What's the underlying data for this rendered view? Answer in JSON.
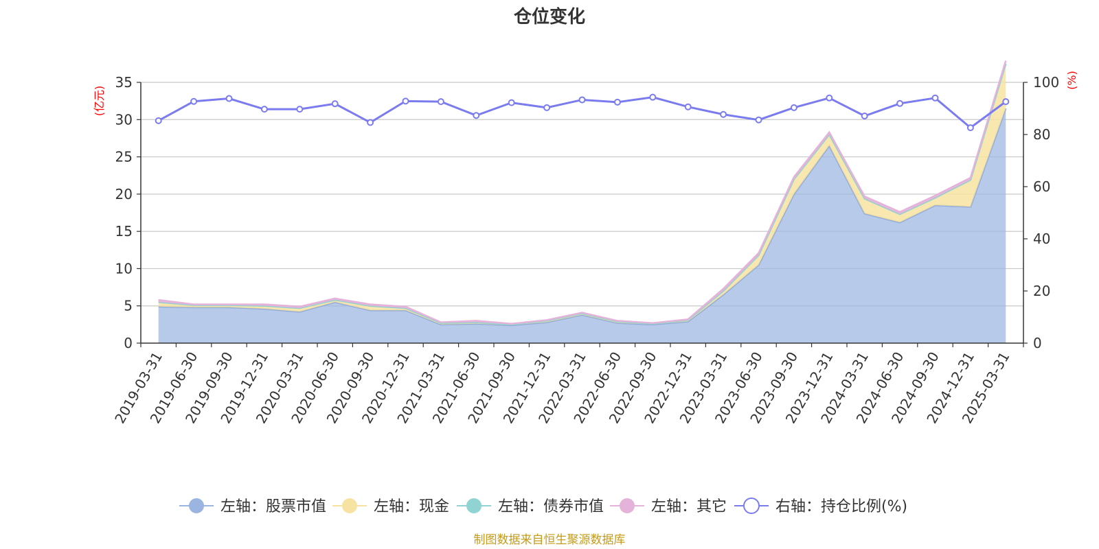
{
  "chart_data": {
    "type": "area",
    "title": "仓位变化",
    "left_axis_unit": "(亿元)",
    "right_axis_unit": "(%)",
    "ylim_left": [
      0,
      35
    ],
    "yticks_left": [
      "0",
      "5",
      "10",
      "15",
      "20",
      "25",
      "30",
      "35"
    ],
    "ylim_right": [
      0,
      100
    ],
    "yticks_right": [
      "0",
      "20",
      "40",
      "60",
      "80",
      "100"
    ],
    "grid": true,
    "legend_position": "bottom",
    "categories": [
      "2019-03-31",
      "2019-06-30",
      "2019-09-30",
      "2019-12-31",
      "2020-03-31",
      "2020-06-30",
      "2020-09-30",
      "2020-12-31",
      "2021-03-31",
      "2021-06-30",
      "2021-09-30",
      "2021-12-31",
      "2022-03-31",
      "2022-06-30",
      "2022-09-30",
      "2022-12-31",
      "2023-03-31",
      "2023-06-30",
      "2023-09-30",
      "2023-12-31",
      "2024-03-31",
      "2024-06-30",
      "2024-09-30",
      "2024-12-31",
      "2025-03-31"
    ],
    "series": [
      {
        "name": "左轴：股票市值",
        "axis": "left",
        "stacked": true,
        "color": "#9bb5e0",
        "values": [
          4.9,
          4.8,
          4.8,
          4.6,
          4.2,
          5.5,
          4.4,
          4.4,
          2.5,
          2.6,
          2.4,
          2.8,
          3.8,
          2.7,
          2.5,
          2.9,
          6.5,
          10.5,
          20.0,
          26.5,
          17.4,
          16.2,
          18.5,
          18.3,
          31.5
        ]
      },
      {
        "name": "左轴：现金",
        "axis": "left",
        "stacked": true,
        "color": "#f7e3a1",
        "values": [
          0.6,
          0.3,
          0.3,
          0.4,
          0.5,
          0.3,
          0.6,
          0.3,
          0.2,
          0.2,
          0.1,
          0.2,
          0.2,
          0.2,
          0.1,
          0.2,
          0.5,
          1.3,
          2.0,
          1.5,
          2.0,
          1.1,
          1.0,
          3.6,
          6.0
        ]
      },
      {
        "name": "左轴：债券市值",
        "axis": "left",
        "stacked": true,
        "color": "#8fd3d3",
        "values": [
          0,
          0,
          0,
          0,
          0,
          0,
          0,
          0,
          0,
          0,
          0,
          0,
          0,
          0,
          0,
          0,
          0,
          0,
          0,
          0,
          0,
          0,
          0,
          0,
          0
        ]
      },
      {
        "name": "左轴：其它",
        "axis": "left",
        "stacked": true,
        "color": "#e5b3d9",
        "values": [
          0.3,
          0.1,
          0.1,
          0.2,
          0.2,
          0.2,
          0.2,
          0.2,
          0.1,
          0.2,
          0.1,
          0.1,
          0.1,
          0.1,
          0.1,
          0.1,
          0.3,
          0.3,
          0.3,
          0.3,
          0.3,
          0.3,
          0.3,
          0.3,
          0.4
        ]
      },
      {
        "name": "右轴：持仓比例(%)",
        "axis": "right",
        "type": "line",
        "color": "#7b7bf0",
        "values": [
          85.3,
          92.7,
          93.8,
          89.7,
          89.7,
          91.8,
          84.6,
          92.8,
          92.6,
          87.3,
          92.2,
          90.3,
          93.3,
          92.4,
          94.3,
          90.6,
          87.7,
          85.6,
          90.3,
          94.0,
          87.1,
          91.9,
          94.0,
          82.6,
          92.6
        ]
      }
    ],
    "source_note": "制图数据来自恒生聚源数据库"
  }
}
